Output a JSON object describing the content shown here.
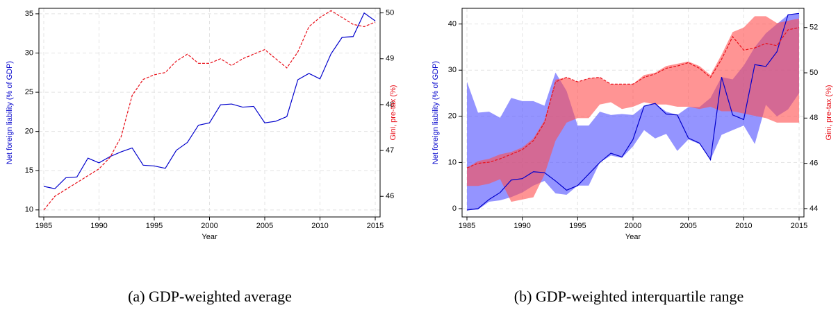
{
  "chart_data": [
    {
      "type": "line",
      "caption": "(a) GDP-weighted average",
      "xlabel": "Year",
      "ylabel": "Net foreign liability (% of GDP)",
      "y2label": "Gini, pre-tax (%)",
      "ylabel_color": "#0000cc",
      "y2label_color": "#e8101a",
      "x": [
        1985,
        1986,
        1987,
        1988,
        1989,
        1990,
        1991,
        1992,
        1993,
        1994,
        1995,
        1996,
        1997,
        1998,
        1999,
        2000,
        2001,
        2002,
        2003,
        2004,
        2005,
        2006,
        2007,
        2008,
        2009,
        2010,
        2011,
        2012,
        2013,
        2014,
        2015
      ],
      "xlim": [
        1984.56,
        2015.44
      ],
      "xticks": [
        1985,
        1990,
        1995,
        2000,
        2005,
        2010,
        2015
      ],
      "ylim": [
        9.1,
        35.7
      ],
      "yticks": [
        10,
        15,
        20,
        25,
        30,
        35
      ],
      "y2lim": [
        45.55,
        50.1
      ],
      "y2ticks": [
        46,
        47,
        48,
        49,
        50
      ],
      "grid": true,
      "series": [
        {
          "color": "#0000cc",
          "axis": "y",
          "dashed": false,
          "values": [
            13.0,
            12.7,
            14.1,
            14.2,
            16.6,
            16.0,
            16.8,
            17.4,
            17.9,
            15.7,
            15.6,
            15.3,
            17.6,
            18.6,
            20.8,
            21.1,
            23.4,
            23.5,
            23.1,
            23.2,
            21.1,
            21.3,
            21.9,
            26.6,
            27.4,
            26.7,
            29.9,
            32.0,
            32.1,
            35.1,
            34.1
          ]
        },
        {
          "color": "#e8101a",
          "axis": "y2",
          "dashed": true,
          "values": [
            45.7,
            46.0,
            46.15,
            46.3,
            46.45,
            46.6,
            46.85,
            47.3,
            48.2,
            48.55,
            48.65,
            48.7,
            48.95,
            49.1,
            48.9,
            48.9,
            49.0,
            48.85,
            49.0,
            49.1,
            49.2,
            49.0,
            48.8,
            49.15,
            49.7,
            49.9,
            50.05,
            49.9,
            49.75,
            49.7,
            49.8
          ]
        }
      ],
      "bands": []
    },
    {
      "type": "line",
      "caption": "(b) GDP-weighted interquartile range",
      "xlabel": "Year",
      "ylabel": "Net foreign liability (% of GDP)",
      "y2label": "Gini, pre-tax (%)",
      "ylabel_color": "#0000cc",
      "y2label_color": "#e8101a",
      "x": [
        1985,
        1986,
        1987,
        1988,
        1989,
        1990,
        1991,
        1992,
        1993,
        1994,
        1995,
        1996,
        1997,
        1998,
        1999,
        2000,
        2001,
        2002,
        2003,
        2004,
        2005,
        2006,
        2007,
        2008,
        2009,
        2010,
        2011,
        2012,
        2013,
        2014,
        2015
      ],
      "xlim": [
        1984.56,
        2015.44
      ],
      "xticks": [
        1985,
        1990,
        1995,
        2000,
        2005,
        2010,
        2015
      ],
      "ylim": [
        -1.8,
        43.4
      ],
      "yticks": [
        0,
        10,
        20,
        30,
        40
      ],
      "y2lim": [
        43.63,
        52.85
      ],
      "y2ticks": [
        44,
        46,
        48,
        50,
        52
      ],
      "grid": true,
      "bands": [
        {
          "color": "#4d4dff",
          "axis": "y",
          "upper": [
            27.5,
            20.8,
            21.0,
            19.7,
            24.0,
            23.3,
            23.3,
            22.3,
            29.5,
            25.5,
            18.0,
            18.0,
            21.0,
            20.3,
            20.5,
            20.3,
            22.2,
            22.8,
            21.0,
            20.3,
            22.0,
            22.0,
            24.0,
            28.5,
            28.0,
            31.0,
            35.0,
            38.0,
            40.0,
            42.0,
            42.3
          ],
          "lower": [
            -0.3,
            -0.2,
            1.5,
            1.8,
            2.5,
            3.5,
            5.0,
            6.0,
            3.3,
            3.0,
            5.0,
            5.0,
            10.0,
            11.5,
            11.0,
            13.5,
            17.0,
            15.2,
            16.2,
            12.5,
            15.0,
            14.0,
            10.6,
            16.0,
            17.0,
            18.0,
            14.0,
            22.5,
            20.0,
            21.5,
            25.0
          ]
        },
        {
          "color": "#ff4d4d",
          "axis": "y2",
          "upper": [
            45.8,
            46.1,
            46.2,
            46.4,
            46.5,
            46.7,
            47.1,
            47.9,
            49.7,
            49.8,
            49.6,
            49.75,
            49.8,
            49.5,
            49.5,
            49.5,
            49.9,
            50.0,
            50.3,
            50.4,
            50.5,
            50.3,
            49.9,
            50.8,
            51.8,
            52.0,
            52.5,
            52.5,
            52.2,
            52.3,
            52.4
          ],
          "lower": [
            45.0,
            45.0,
            45.1,
            45.3,
            44.3,
            44.4,
            44.5,
            45.5,
            47.0,
            47.8,
            48.0,
            48.0,
            48.6,
            48.7,
            48.4,
            48.5,
            48.7,
            48.6,
            48.6,
            48.5,
            48.5,
            48.4,
            48.5,
            48.3,
            48.3,
            48.2,
            48.1,
            48.0,
            47.8,
            47.8,
            47.8
          ]
        }
      ],
      "series": [
        {
          "color": "#0000cc",
          "axis": "y",
          "dashed": false,
          "values": [
            -0.3,
            0,
            2.0,
            3.5,
            6.2,
            6.5,
            8.0,
            7.8,
            6.0,
            4.0,
            5.0,
            7.5,
            10.0,
            12.0,
            11.2,
            15.0,
            22.2,
            22.8,
            20.5,
            20.3,
            15.3,
            14.2,
            10.6,
            28.5,
            20.3,
            19.3,
            31.2,
            30.8,
            34.0,
            42.0,
            42.3
          ]
        },
        {
          "color": "#e8101a",
          "axis": "y2",
          "dashed": true,
          "values": [
            45.8,
            46.0,
            46.05,
            46.2,
            46.4,
            46.6,
            47.0,
            47.8,
            49.6,
            49.8,
            49.6,
            49.75,
            49.8,
            49.5,
            49.5,
            49.5,
            49.8,
            49.95,
            50.2,
            50.3,
            50.45,
            50.2,
            49.8,
            50.6,
            51.6,
            51.0,
            51.1,
            51.3,
            51.2,
            51.9,
            52.0
          ]
        }
      ]
    }
  ]
}
